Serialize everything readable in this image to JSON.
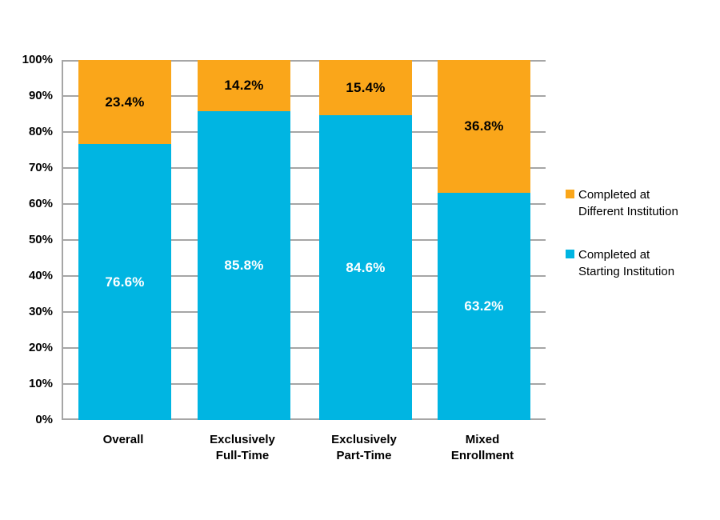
{
  "chart": {
    "background_color": "#ffffff",
    "grid_color": "#a6a6a6",
    "axis_color": "#a6a6a6",
    "y_axis": {
      "tick_labels": [
        "100%",
        "90%",
        "80%",
        "70%",
        "60%",
        "50%",
        "40%",
        "30%",
        "20%",
        "10%",
        "0%"
      ]
    },
    "x_labels": [
      [
        "Overall"
      ],
      [
        "Exclusively",
        "Full-Time"
      ],
      [
        "Exclusively",
        "Part-Time"
      ],
      [
        "Mixed",
        "Enrollment"
      ]
    ],
    "legend": {
      "items": [
        {
          "line1": "Completed at",
          "line2": "Different Institution",
          "swatch_color": "#faa61a"
        },
        {
          "line1": "Completed at",
          "line2": "Starting Institution",
          "swatch_color": "#00b5e2"
        }
      ]
    }
  },
  "chart_data": {
    "type": "bar",
    "stacked": true,
    "title": "",
    "xlabel": "",
    "ylabel": "",
    "categories": [
      "Overall",
      "Exclusively Full-Time",
      "Exclusively Part-Time",
      "Mixed Enrollment"
    ],
    "series": [
      {
        "name": "Completed at Different Institution",
        "color": "#faa61a",
        "label_color": "#000000",
        "values": [
          23.4,
          14.2,
          15.4,
          36.8
        ],
        "labels": [
          "23.4%",
          "14.2%",
          "15.4%",
          "36.8%"
        ]
      },
      {
        "name": "Completed at Starting Institution",
        "color": "#00b5e2",
        "label_color": "#ffffff",
        "values": [
          76.6,
          85.8,
          84.6,
          63.2
        ],
        "labels": [
          "76.6%",
          "85.8%",
          "84.6%",
          "63.2%"
        ]
      }
    ],
    "ylim": [
      0,
      100
    ],
    "y_tick_step": 10,
    "grid": true,
    "legend_position": "right"
  }
}
